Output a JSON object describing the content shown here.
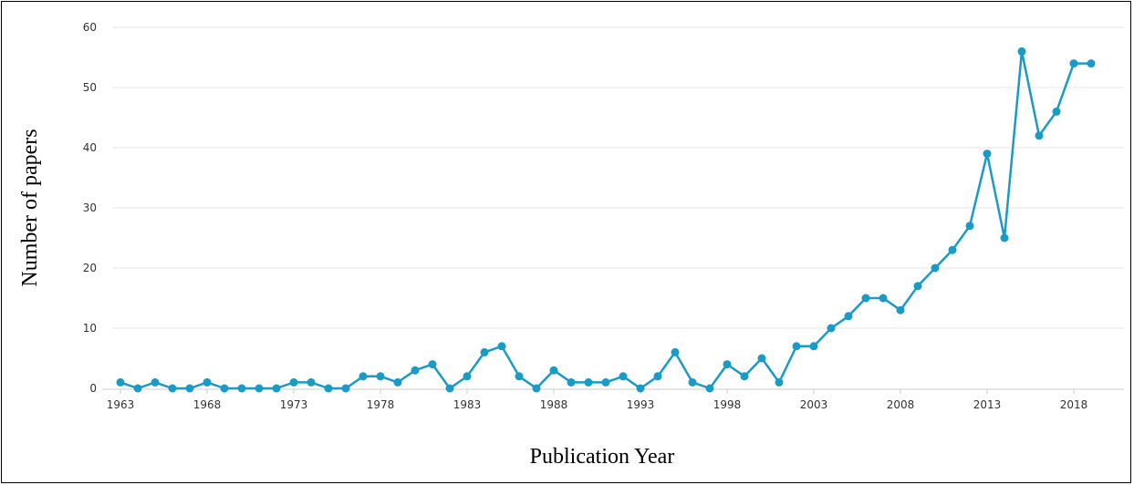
{
  "chart_data": {
    "type": "line",
    "xlabel": "Publication Year",
    "ylabel": "Number of papers",
    "xlim": [
      1963,
      2019
    ],
    "ylim": [
      0,
      60
    ],
    "x_ticks": [
      1963,
      1968,
      1973,
      1978,
      1983,
      1988,
      1993,
      1998,
      2003,
      2008,
      2013,
      2018
    ],
    "y_ticks": [
      0,
      10,
      20,
      30,
      40,
      50,
      60
    ],
    "grid": "horizontal",
    "legend": "none",
    "series": [
      {
        "color": "#1a9bc7",
        "x": [
          1963,
          1964,
          1965,
          1966,
          1967,
          1968,
          1969,
          1970,
          1971,
          1972,
          1973,
          1974,
          1975,
          1976,
          1977,
          1978,
          1979,
          1980,
          1981,
          1982,
          1983,
          1984,
          1985,
          1986,
          1987,
          1988,
          1989,
          1990,
          1991,
          1992,
          1993,
          1994,
          1995,
          1996,
          1997,
          1998,
          1999,
          2000,
          2001,
          2002,
          2003,
          2004,
          2005,
          2006,
          2007,
          2008,
          2009,
          2010,
          2011,
          2012,
          2013,
          2014,
          2015,
          2016,
          2017,
          2018,
          2019
        ],
        "values": [
          1,
          0,
          1,
          0,
          0,
          1,
          0,
          0,
          0,
          0,
          1,
          1,
          0,
          0,
          2,
          2,
          1,
          3,
          4,
          0,
          2,
          6,
          7,
          2,
          0,
          3,
          1,
          1,
          1,
          2,
          0,
          2,
          6,
          1,
          0,
          4,
          2,
          5,
          1,
          7,
          7,
          10,
          12,
          15,
          15,
          13,
          17,
          20,
          23,
          27,
          39,
          25,
          56,
          42,
          46,
          54,
          54
        ]
      }
    ]
  }
}
